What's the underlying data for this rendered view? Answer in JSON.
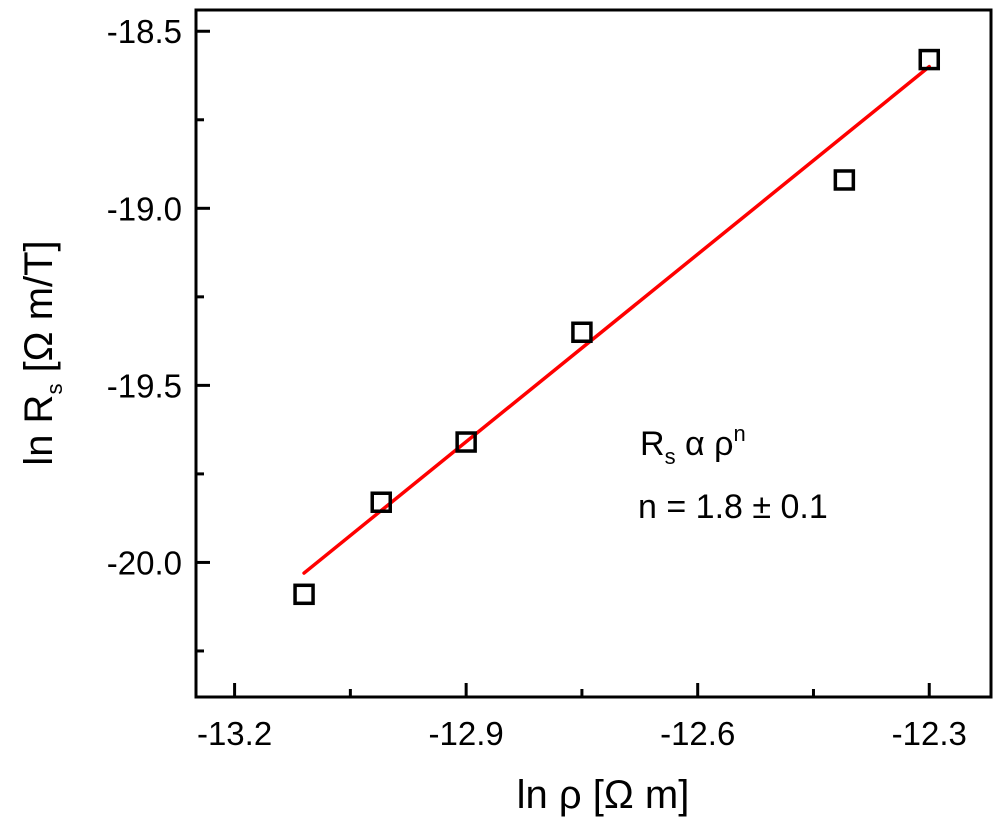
{
  "chart_data": {
    "type": "scatter",
    "xlabel": {
      "prefix": "ln ",
      "symbol": "ρ",
      "unit": " [Ω m]"
    },
    "ylabel": {
      "prefix": "ln R",
      "sub": "s",
      "unit": " [Ω m/T]"
    },
    "xlim": [
      -13.25,
      -12.22
    ],
    "ylim": [
      -20.38,
      -18.44
    ],
    "x_ticks": [
      -13.2,
      -12.9,
      -12.6,
      -12.3
    ],
    "x_tick_labels": [
      "-13.2",
      "-12.9",
      "-12.6",
      "-12.3"
    ],
    "x_minor_ticks": [
      -13.05,
      -12.75,
      -12.45
    ],
    "y_ticks": [
      -20.0,
      -19.5,
      -19.0,
      -18.5
    ],
    "y_tick_labels": [
      "-20.0",
      "-19.5",
      "-19.0",
      "-18.5"
    ],
    "y_minor_ticks": [
      -20.25,
      -19.75,
      -19.25,
      -18.75
    ],
    "grid": false,
    "series": [
      {
        "marker": "open-square",
        "color": "#000000",
        "points": [
          {
            "x": -13.11,
            "y": -20.09
          },
          {
            "x": -13.01,
            "y": -19.83
          },
          {
            "x": -12.9,
            "y": -19.66
          },
          {
            "x": -12.75,
            "y": -19.35
          },
          {
            "x": -12.41,
            "y": -18.92
          },
          {
            "x": -12.3,
            "y": -18.58
          }
        ]
      },
      {
        "kind": "fit-line",
        "color": "#ff0000",
        "start": {
          "x": -13.11,
          "y": -20.03
        },
        "end": {
          "x": -12.3,
          "y": -18.6
        }
      }
    ],
    "annotation": {
      "line1": {
        "base": "R",
        "sub": "s",
        "alpha": " α ρ",
        "sup": "n"
      },
      "line2": "n = 1.8 ± 0.1"
    }
  }
}
